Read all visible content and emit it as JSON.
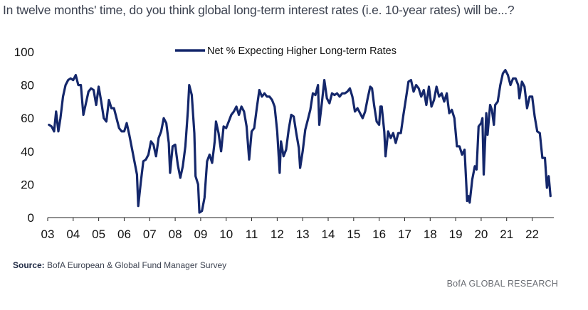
{
  "header": {
    "title": "In twelve months' time, do you think global long-term interest rates (i.e. 10-year rates) will be...?"
  },
  "footer": {
    "source_label": "Source:",
    "source_text": " BofA European & Global Fund Manager Survey",
    "brand": "BofA GLOBAL RESEARCH"
  },
  "chart_data": {
    "type": "line",
    "title": "",
    "xlabel": "",
    "ylabel": "",
    "ylim": [
      0,
      100
    ],
    "yticks": [
      0,
      20,
      40,
      60,
      80,
      100
    ],
    "xlim": [
      2003.0,
      2022.85
    ],
    "xticks": [
      {
        "value": 2003,
        "label": "03"
      },
      {
        "value": 2004,
        "label": "04"
      },
      {
        "value": 2005,
        "label": "05"
      },
      {
        "value": 2006,
        "label": "06"
      },
      {
        "value": 2007,
        "label": "07"
      },
      {
        "value": 2008,
        "label": "08"
      },
      {
        "value": 2009,
        "label": "09"
      },
      {
        "value": 2010,
        "label": "10"
      },
      {
        "value": 2011,
        "label": "11"
      },
      {
        "value": 2012,
        "label": "12"
      },
      {
        "value": 2013,
        "label": "13"
      },
      {
        "value": 2014,
        "label": "14"
      },
      {
        "value": 2015,
        "label": "15"
      },
      {
        "value": 2016,
        "label": "16"
      },
      {
        "value": 2017,
        "label": "17"
      },
      {
        "value": 2018,
        "label": "18"
      },
      {
        "value": 2019,
        "label": "19"
      },
      {
        "value": 2020,
        "label": "20"
      },
      {
        "value": 2021,
        "label": "21"
      },
      {
        "value": 2022,
        "label": "22"
      }
    ],
    "legend_position": "top-center",
    "grid": false,
    "color": "#14276b",
    "series": [
      {
        "name": "Net % Expecting Higher Long-term Rates",
        "points": [
          [
            2003.05,
            56
          ],
          [
            2003.15,
            55
          ],
          [
            2003.25,
            52
          ],
          [
            2003.33,
            64
          ],
          [
            2003.42,
            52
          ],
          [
            2003.5,
            60
          ],
          [
            2003.6,
            73
          ],
          [
            2003.7,
            80
          ],
          [
            2003.8,
            83
          ],
          [
            2003.9,
            84
          ],
          [
            2004.0,
            83
          ],
          [
            2004.1,
            86
          ],
          [
            2004.2,
            80
          ],
          [
            2004.3,
            80
          ],
          [
            2004.4,
            62
          ],
          [
            2004.5,
            69
          ],
          [
            2004.6,
            76
          ],
          [
            2004.7,
            78
          ],
          [
            2004.8,
            77
          ],
          [
            2004.9,
            68
          ],
          [
            2005.0,
            79
          ],
          [
            2005.1,
            70
          ],
          [
            2005.2,
            60
          ],
          [
            2005.3,
            58
          ],
          [
            2005.4,
            71
          ],
          [
            2005.5,
            66
          ],
          [
            2005.6,
            66
          ],
          [
            2005.7,
            60
          ],
          [
            2005.8,
            54
          ],
          [
            2005.9,
            52
          ],
          [
            2006.0,
            52
          ],
          [
            2006.1,
            57
          ],
          [
            2006.2,
            50
          ],
          [
            2006.3,
            42
          ],
          [
            2006.4,
            34
          ],
          [
            2006.5,
            26
          ],
          [
            2006.55,
            7
          ],
          [
            2006.65,
            21
          ],
          [
            2006.75,
            34
          ],
          [
            2006.85,
            35
          ],
          [
            2006.95,
            38
          ],
          [
            2007.05,
            46
          ],
          [
            2007.15,
            44
          ],
          [
            2007.25,
            37
          ],
          [
            2007.35,
            48
          ],
          [
            2007.45,
            52
          ],
          [
            2007.55,
            60
          ],
          [
            2007.65,
            57
          ],
          [
            2007.75,
            45
          ],
          [
            2007.8,
            27
          ],
          [
            2007.9,
            43
          ],
          [
            2008.0,
            44
          ],
          [
            2008.1,
            32
          ],
          [
            2008.2,
            24
          ],
          [
            2008.3,
            31
          ],
          [
            2008.4,
            43
          ],
          [
            2008.5,
            65
          ],
          [
            2008.55,
            80
          ],
          [
            2008.65,
            74
          ],
          [
            2008.75,
            51
          ],
          [
            2008.8,
            25
          ],
          [
            2008.9,
            20
          ],
          [
            2008.95,
            3
          ],
          [
            2009.05,
            4
          ],
          [
            2009.15,
            12
          ],
          [
            2009.25,
            34
          ],
          [
            2009.35,
            38
          ],
          [
            2009.45,
            33
          ],
          [
            2009.55,
            46
          ],
          [
            2009.6,
            58
          ],
          [
            2009.7,
            51
          ],
          [
            2009.8,
            40
          ],
          [
            2009.9,
            55
          ],
          [
            2010.0,
            54
          ],
          [
            2010.1,
            58
          ],
          [
            2010.2,
            62
          ],
          [
            2010.3,
            64
          ],
          [
            2010.4,
            67
          ],
          [
            2010.5,
            62
          ],
          [
            2010.6,
            67
          ],
          [
            2010.7,
            64
          ],
          [
            2010.8,
            55
          ],
          [
            2010.9,
            35
          ],
          [
            2011.0,
            52
          ],
          [
            2011.1,
            54
          ],
          [
            2011.2,
            66
          ],
          [
            2011.3,
            77
          ],
          [
            2011.4,
            73
          ],
          [
            2011.5,
            75
          ],
          [
            2011.6,
            73
          ],
          [
            2011.7,
            73
          ],
          [
            2011.8,
            71
          ],
          [
            2011.9,
            67
          ],
          [
            2012.0,
            52
          ],
          [
            2012.1,
            27
          ],
          [
            2012.15,
            46
          ],
          [
            2012.25,
            37
          ],
          [
            2012.35,
            41
          ],
          [
            2012.45,
            53
          ],
          [
            2012.55,
            62
          ],
          [
            2012.65,
            61
          ],
          [
            2012.75,
            51
          ],
          [
            2012.85,
            42
          ],
          [
            2012.9,
            30
          ],
          [
            2013.0,
            40
          ],
          [
            2013.1,
            53
          ],
          [
            2013.2,
            59
          ],
          [
            2013.3,
            65
          ],
          [
            2013.4,
            75
          ],
          [
            2013.5,
            74
          ],
          [
            2013.6,
            80
          ],
          [
            2013.65,
            56
          ],
          [
            2013.75,
            69
          ],
          [
            2013.85,
            83
          ],
          [
            2013.95,
            72
          ],
          [
            2014.05,
            69
          ],
          [
            2014.15,
            75
          ],
          [
            2014.25,
            74
          ],
          [
            2014.35,
            75
          ],
          [
            2014.45,
            73
          ],
          [
            2014.55,
            75
          ],
          [
            2014.65,
            75
          ],
          [
            2014.75,
            76
          ],
          [
            2014.85,
            78
          ],
          [
            2014.95,
            73
          ],
          [
            2015.05,
            64
          ],
          [
            2015.15,
            66
          ],
          [
            2015.25,
            63
          ],
          [
            2015.35,
            60
          ],
          [
            2015.45,
            64
          ],
          [
            2015.55,
            72
          ],
          [
            2015.65,
            79
          ],
          [
            2015.72,
            78
          ],
          [
            2015.8,
            68
          ],
          [
            2015.9,
            58
          ],
          [
            2016.0,
            56
          ],
          [
            2016.05,
            67
          ],
          [
            2016.1,
            67
          ],
          [
            2016.2,
            52
          ],
          [
            2016.25,
            37
          ],
          [
            2016.35,
            52
          ],
          [
            2016.45,
            48
          ],
          [
            2016.55,
            51
          ],
          [
            2016.65,
            45
          ],
          [
            2016.75,
            51
          ],
          [
            2016.85,
            51
          ],
          [
            2016.95,
            62
          ],
          [
            2017.05,
            72
          ],
          [
            2017.15,
            82
          ],
          [
            2017.25,
            83
          ],
          [
            2017.35,
            76
          ],
          [
            2017.45,
            80
          ],
          [
            2017.55,
            78
          ],
          [
            2017.65,
            73
          ],
          [
            2017.75,
            77
          ],
          [
            2017.85,
            68
          ],
          [
            2017.95,
            79
          ],
          [
            2018.05,
            67
          ],
          [
            2018.15,
            71
          ],
          [
            2018.25,
            79
          ],
          [
            2018.35,
            73
          ],
          [
            2018.45,
            75
          ],
          [
            2018.55,
            70
          ],
          [
            2018.65,
            75
          ],
          [
            2018.75,
            63
          ],
          [
            2018.85,
            65
          ],
          [
            2018.95,
            60
          ],
          [
            2019.05,
            43
          ],
          [
            2019.15,
            43
          ],
          [
            2019.25,
            38
          ],
          [
            2019.35,
            41
          ],
          [
            2019.45,
            10
          ],
          [
            2019.5,
            13
          ],
          [
            2019.55,
            9
          ],
          [
            2019.65,
            23
          ],
          [
            2019.75,
            31
          ],
          [
            2019.82,
            29
          ],
          [
            2019.9,
            55
          ],
          [
            2020.0,
            57
          ],
          [
            2020.05,
            60
          ],
          [
            2020.1,
            26
          ],
          [
            2020.2,
            63
          ],
          [
            2020.25,
            50
          ],
          [
            2020.35,
            68
          ],
          [
            2020.42,
            65
          ],
          [
            2020.5,
            56
          ],
          [
            2020.55,
            68
          ],
          [
            2020.65,
            70
          ],
          [
            2020.75,
            80
          ],
          [
            2020.85,
            87
          ],
          [
            2020.95,
            89
          ],
          [
            2021.05,
            86
          ],
          [
            2021.15,
            80
          ],
          [
            2021.25,
            84
          ],
          [
            2021.35,
            84
          ],
          [
            2021.45,
            80
          ],
          [
            2021.5,
            72
          ],
          [
            2021.6,
            82
          ],
          [
            2021.7,
            79
          ],
          [
            2021.8,
            66
          ],
          [
            2021.9,
            73
          ],
          [
            2022.0,
            73
          ],
          [
            2022.1,
            61
          ],
          [
            2022.2,
            52
          ],
          [
            2022.3,
            51
          ],
          [
            2022.4,
            36
          ],
          [
            2022.5,
            36
          ],
          [
            2022.58,
            18
          ],
          [
            2022.65,
            25
          ],
          [
            2022.72,
            13
          ]
        ]
      }
    ]
  }
}
